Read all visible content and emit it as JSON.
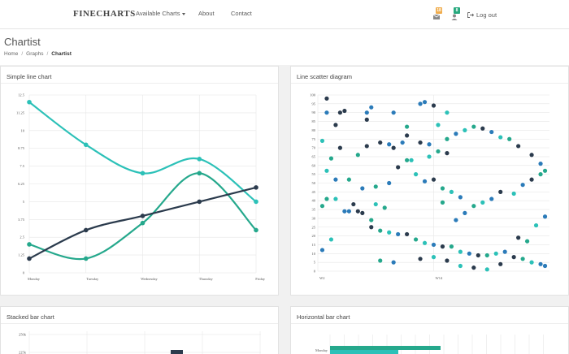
{
  "brand": "FINECHARTS",
  "nav": {
    "charts": "Available Charts",
    "about": "About",
    "contact": "Contact"
  },
  "badges": {
    "messages": "18",
    "users": "8"
  },
  "logout": "Log out",
  "page": {
    "title": "Chartist",
    "breadcrumb": [
      "Home",
      "Graphs",
      "Chartist"
    ]
  },
  "colors": {
    "teal_light": "#2cc1b8",
    "teal_dark": "#25a88c",
    "navy": "#2b3b4d",
    "blue": "#2b7bb9"
  },
  "panels": {
    "line": "Simple line chart",
    "scatter": "Line scatter diagram",
    "stacked": "Stacked bar chart",
    "horizontal": "Horizontal bar chart"
  },
  "chart_data": [
    {
      "type": "line",
      "title": "Simple line chart",
      "categories": [
        "Monday",
        "Tuesday",
        "Wednesday",
        "Thursday",
        "Friday"
      ],
      "y_ticks": [
        "0",
        "1.25",
        "2.5",
        "3.75",
        "5",
        "6.25",
        "7.5",
        "8.75",
        "10",
        "11.25",
        "12.5"
      ],
      "ylim": [
        0,
        12.5
      ],
      "series": [
        {
          "values": [
            12,
            9,
            7,
            8,
            5
          ],
          "color": "#2cc1b8"
        },
        {
          "values": [
            2,
            1,
            3.5,
            7,
            3
          ],
          "color": "#25a88c"
        },
        {
          "values": [
            1,
            3,
            4,
            5,
            6
          ],
          "color": "#2b3b4d"
        }
      ]
    },
    {
      "type": "scatter",
      "title": "Line scatter diagram",
      "x_ticks": [
        "W2",
        "W14"
      ],
      "y_ticks": [
        "0",
        "5",
        "10",
        "15",
        "20",
        "25",
        "30",
        "35",
        "40",
        "45",
        "50",
        "55",
        "60",
        "65",
        "70",
        "75",
        "80",
        "85",
        "90",
        "95",
        "100"
      ],
      "ylim": [
        0,
        100
      ],
      "xlim": [
        0,
        52
      ],
      "points": [
        [
          2,
          98
        ],
        [
          2,
          90
        ],
        [
          4,
          83
        ],
        [
          5,
          90
        ],
        [
          6,
          91
        ],
        [
          11,
          86
        ],
        [
          11,
          90
        ],
        [
          12,
          93
        ],
        [
          17,
          90
        ],
        [
          20,
          82
        ],
        [
          23,
          95
        ],
        [
          24,
          96
        ],
        [
          26,
          94
        ],
        [
          29,
          90
        ],
        [
          29,
          75
        ],
        [
          27,
          83
        ],
        [
          25,
          72
        ],
        [
          23,
          73
        ],
        [
          20,
          77
        ],
        [
          17,
          70
        ],
        [
          14,
          73
        ],
        [
          11,
          71
        ],
        [
          9,
          66
        ],
        [
          5,
          70
        ],
        [
          3,
          64
        ],
        [
          1,
          74
        ],
        [
          2,
          57
        ],
        [
          4,
          52
        ],
        [
          7,
          52
        ],
        [
          10,
          47
        ],
        [
          13,
          48
        ],
        [
          16,
          50
        ],
        [
          18,
          59
        ],
        [
          20,
          63
        ],
        [
          22,
          55
        ],
        [
          24,
          51
        ],
        [
          26,
          52
        ],
        [
          28,
          47
        ],
        [
          30,
          45
        ],
        [
          32,
          42
        ],
        [
          35,
          37
        ],
        [
          37,
          39
        ],
        [
          39,
          41
        ],
        [
          41,
          45
        ],
        [
          44,
          44
        ],
        [
          46,
          49
        ],
        [
          48,
          52
        ],
        [
          50,
          55
        ],
        [
          51,
          57
        ],
        [
          50,
          61
        ],
        [
          48,
          66
        ],
        [
          45,
          71
        ],
        [
          43,
          75
        ],
        [
          41,
          76
        ],
        [
          39,
          79
        ],
        [
          37,
          81
        ],
        [
          35,
          82
        ],
        [
          33,
          80
        ],
        [
          31,
          78
        ],
        [
          29,
          67
        ],
        [
          27,
          68
        ],
        [
          25,
          65
        ],
        [
          1,
          37
        ],
        [
          2,
          41
        ],
        [
          4,
          41
        ],
        [
          6,
          34
        ],
        [
          7,
          34
        ],
        [
          9,
          34
        ],
        [
          10,
          33
        ],
        [
          12,
          29
        ],
        [
          12,
          25
        ],
        [
          14,
          23
        ],
        [
          16,
          22
        ],
        [
          18,
          21
        ],
        [
          20,
          21
        ],
        [
          22,
          18
        ],
        [
          24,
          16
        ],
        [
          26,
          15
        ],
        [
          28,
          14
        ],
        [
          30,
          14
        ],
        [
          32,
          11
        ],
        [
          34,
          10
        ],
        [
          36,
          9
        ],
        [
          38,
          9
        ],
        [
          40,
          10
        ],
        [
          42,
          11
        ],
        [
          44,
          8
        ],
        [
          46,
          7
        ],
        [
          48,
          5
        ],
        [
          50,
          4
        ],
        [
          51,
          3
        ],
        [
          45,
          19
        ],
        [
          47,
          17
        ],
        [
          49,
          26
        ],
        [
          51,
          31
        ],
        [
          14,
          6
        ],
        [
          17,
          5
        ],
        [
          23,
          7
        ],
        [
          26,
          8
        ],
        [
          29,
          6
        ],
        [
          32,
          3
        ],
        [
          35,
          2
        ],
        [
          38,
          1
        ],
        [
          41,
          4
        ],
        [
          15,
          36
        ],
        [
          13,
          38
        ],
        [
          8,
          38
        ],
        [
          3,
          18
        ],
        [
          1,
          12
        ],
        [
          21,
          63
        ],
        [
          19,
          73
        ],
        [
          16,
          72
        ],
        [
          33,
          33
        ],
        [
          28,
          39
        ],
        [
          31,
          29
        ]
      ]
    },
    {
      "type": "bar",
      "title": "Stacked bar chart",
      "y_ticks": [
        "250k",
        "225k"
      ]
    },
    {
      "type": "bar",
      "title": "Horizontal bar chart",
      "categories": [
        "Monday"
      ]
    }
  ]
}
